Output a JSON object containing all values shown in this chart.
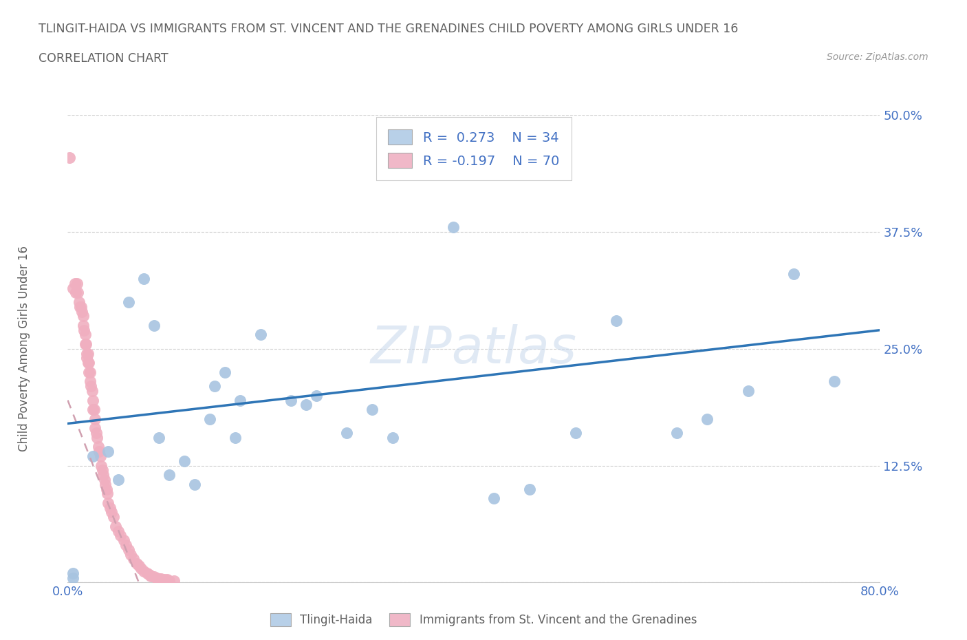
{
  "title": "TLINGIT-HAIDA VS IMMIGRANTS FROM ST. VINCENT AND THE GRENADINES CHILD POVERTY AMONG GIRLS UNDER 16",
  "subtitle": "CORRELATION CHART",
  "source": "Source: ZipAtlas.com",
  "ylabel": "Child Poverty Among Girls Under 16",
  "watermark": "ZIPatlas",
  "r_blue": 0.273,
  "n_blue": 34,
  "r_pink": -0.197,
  "n_pink": 70,
  "blue_color": "#a8c4e0",
  "pink_color": "#f0afc0",
  "trend_blue": "#2e75b6",
  "trend_pink": "#d0a0b0",
  "legend_blue_fill": "#b8d0e8",
  "legend_pink_fill": "#f0b8c8",
  "xlim": [
    0,
    0.8
  ],
  "ylim": [
    0,
    0.5
  ],
  "xticks": [
    0.0,
    0.1,
    0.2,
    0.3,
    0.4,
    0.5,
    0.6,
    0.7,
    0.8
  ],
  "yticks": [
    0.0,
    0.125,
    0.25,
    0.375,
    0.5
  ],
  "blue_trend_x0": 0.0,
  "blue_trend_y0": 0.17,
  "blue_trend_x1": 0.8,
  "blue_trend_y1": 0.27,
  "pink_trend_x0": 0.0,
  "pink_trend_y0": 0.195,
  "pink_trend_x1": 0.07,
  "pink_trend_y1": 0.0,
  "blue_x": [
    0.005,
    0.005,
    0.025,
    0.04,
    0.05,
    0.06,
    0.075,
    0.085,
    0.09,
    0.1,
    0.115,
    0.125,
    0.14,
    0.145,
    0.155,
    0.165,
    0.17,
    0.19,
    0.22,
    0.235,
    0.245,
    0.275,
    0.3,
    0.32,
    0.38,
    0.42,
    0.455,
    0.5,
    0.54,
    0.6,
    0.63,
    0.67,
    0.715,
    0.755
  ],
  "blue_y": [
    0.01,
    0.005,
    0.135,
    0.14,
    0.11,
    0.3,
    0.325,
    0.275,
    0.155,
    0.115,
    0.13,
    0.105,
    0.175,
    0.21,
    0.225,
    0.155,
    0.195,
    0.265,
    0.195,
    0.19,
    0.2,
    0.16,
    0.185,
    0.155,
    0.38,
    0.09,
    0.1,
    0.16,
    0.28,
    0.16,
    0.175,
    0.205,
    0.33,
    0.215
  ],
  "pink_x": [
    0.002,
    0.005,
    0.007,
    0.008,
    0.009,
    0.01,
    0.011,
    0.012,
    0.013,
    0.014,
    0.015,
    0.015,
    0.016,
    0.017,
    0.017,
    0.018,
    0.019,
    0.019,
    0.02,
    0.02,
    0.021,
    0.021,
    0.022,
    0.022,
    0.023,
    0.024,
    0.025,
    0.025,
    0.026,
    0.027,
    0.027,
    0.028,
    0.029,
    0.03,
    0.031,
    0.032,
    0.033,
    0.034,
    0.035,
    0.036,
    0.037,
    0.038,
    0.039,
    0.04,
    0.042,
    0.043,
    0.045,
    0.047,
    0.05,
    0.052,
    0.055,
    0.057,
    0.06,
    0.062,
    0.065,
    0.068,
    0.07,
    0.072,
    0.075,
    0.078,
    0.08,
    0.082,
    0.085,
    0.088,
    0.09,
    0.092,
    0.095,
    0.098,
    0.1,
    0.105
  ],
  "pink_y": [
    0.455,
    0.315,
    0.32,
    0.31,
    0.32,
    0.31,
    0.3,
    0.295,
    0.295,
    0.29,
    0.285,
    0.275,
    0.27,
    0.265,
    0.255,
    0.255,
    0.245,
    0.24,
    0.245,
    0.235,
    0.235,
    0.225,
    0.225,
    0.215,
    0.21,
    0.205,
    0.195,
    0.185,
    0.185,
    0.175,
    0.165,
    0.16,
    0.155,
    0.145,
    0.14,
    0.135,
    0.125,
    0.12,
    0.115,
    0.11,
    0.105,
    0.1,
    0.095,
    0.085,
    0.08,
    0.075,
    0.07,
    0.06,
    0.055,
    0.05,
    0.045,
    0.04,
    0.035,
    0.03,
    0.025,
    0.02,
    0.018,
    0.015,
    0.012,
    0.01,
    0.008,
    0.007,
    0.006,
    0.005,
    0.004,
    0.004,
    0.003,
    0.003,
    0.002,
    0.002
  ],
  "background_color": "#ffffff",
  "grid_color": "#d0d0d0",
  "title_color": "#606060",
  "axis_label_color": "#4472c4",
  "source_color": "#999999"
}
